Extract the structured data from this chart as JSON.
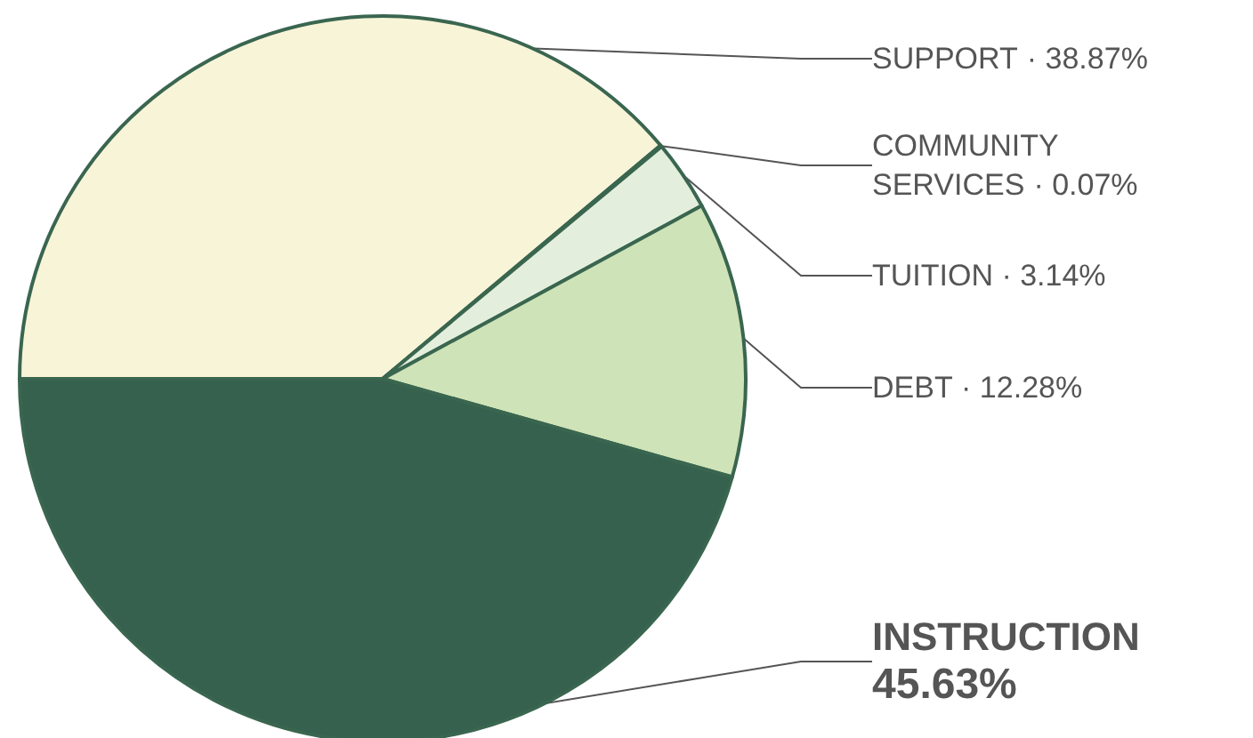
{
  "chart_data": {
    "type": "pie",
    "categories": [
      "SUPPORT",
      "COMMUNITY SERVICES",
      "TUITION",
      "DEBT",
      "INSTRUCTION"
    ],
    "values": [
      38.87,
      0.07,
      3.14,
      12.28,
      45.63
    ],
    "colors": [
      "#f8f4d8",
      "#5a9a50",
      "#e3efdc",
      "#cfe3b8",
      "#35614e"
    ],
    "value_labels": [
      "· 38.87%",
      "· 0.07%",
      "· 3.14%",
      "· 12.28%",
      "45.63%"
    ],
    "legend": false
  }
}
